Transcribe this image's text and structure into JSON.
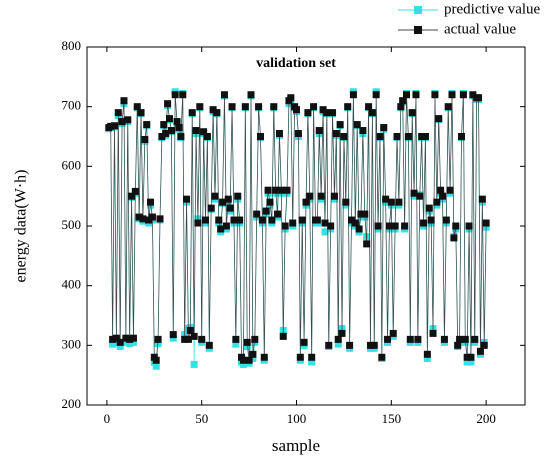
{
  "chart_data": {
    "type": "line",
    "title": "validation set",
    "xlabel": "sample",
    "ylabel": "energy data(W·h)",
    "legend": "upper right",
    "xlim": [
      -10.5,
      220.5
    ],
    "xticks": [
      0,
      50,
      100,
      150,
      200
    ],
    "ylim": [
      200,
      800
    ],
    "yticks": [
      200,
      300,
      400,
      500,
      600,
      700,
      800
    ],
    "x": [
      1,
      2,
      3,
      4,
      5,
      6,
      7,
      8,
      9,
      10,
      11,
      12,
      13,
      14,
      15,
      16,
      17,
      18,
      19,
      20,
      21,
      22,
      23,
      24,
      25,
      26,
      27,
      28,
      29,
      30,
      31,
      32,
      33,
      34,
      35,
      36,
      37,
      38,
      39,
      40,
      41,
      42,
      43,
      44,
      45,
      46,
      47,
      48,
      49,
      50,
      51,
      52,
      53,
      54,
      55,
      56,
      57,
      58,
      59,
      60,
      61,
      62,
      63,
      64,
      65,
      66,
      67,
      68,
      69,
      70,
      71,
      72,
      73,
      74,
      75,
      76,
      77,
      78,
      79,
      80,
      81,
      82,
      83,
      84,
      85,
      86,
      87,
      88,
      89,
      90,
      91,
      92,
      93,
      94,
      95,
      96,
      97,
      98,
      99,
      100,
      101,
      102,
      103,
      104,
      105,
      106,
      107,
      108,
      109,
      110,
      111,
      112,
      113,
      114,
      115,
      116,
      117,
      118,
      119,
      120,
      121,
      122,
      123,
      124,
      125,
      126,
      127,
      128,
      129,
      130,
      131,
      132,
      133,
      134,
      135,
      136,
      137,
      138,
      139,
      140,
      141,
      142,
      143,
      144,
      145,
      146,
      147,
      148,
      149,
      150,
      151,
      152,
      153,
      154,
      155,
      156,
      157,
      158,
      159,
      160,
      161,
      162,
      163,
      164,
      165,
      166,
      167,
      168,
      169,
      170,
      171,
      172,
      173,
      174,
      175,
      176,
      177,
      178,
      179,
      180,
      181,
      182,
      183,
      184,
      185,
      186,
      187,
      188,
      189,
      190,
      191,
      192,
      193,
      194,
      195,
      196,
      197,
      198,
      199,
      200
    ],
    "series": [
      {
        "name": "predictive value",
        "color": "#33e0e6",
        "values": [
          663,
          665,
          302,
          666,
          305,
          685,
          298,
          672,
          705,
          305,
          675,
          303,
          548,
          305,
          555,
          698,
          512,
          688,
          508,
          642,
          668,
          505,
          535,
          510,
          272,
          265,
          303,
          510,
          648,
          668,
          652,
          702,
          678,
          658,
          312,
          725,
          672,
          662,
          648,
          722,
          318,
          540,
          328,
          330,
          688,
          268,
          655,
          512,
          698,
          305,
          655,
          505,
          648,
          295,
          528,
          692,
          545,
          688,
          505,
          490,
          538,
          718,
          495,
          540,
          525,
          698,
          505,
          302,
          545,
          505,
          272,
          268,
          698,
          298,
          270,
          718,
          278,
          305,
          515,
          698,
          648,
          505,
          275,
          520,
          555,
          535,
          505,
          698,
          555,
          515,
          652,
          555,
          325,
          495,
          555,
          705,
          712,
          500,
          698,
          692,
          650,
          275,
          505,
          300,
          535,
          688,
          545,
          272,
          698,
          505,
          505,
          655,
          545,
          692,
          490,
          688,
          298,
          495,
          688,
          545,
          652,
          302,
          668,
          328,
          648,
          535,
          698,
          295,
          505,
          725,
          500,
          668,
          490,
          515,
          655,
          515,
          482,
          698,
          295,
          688,
          295,
          725,
          495,
          648,
          278,
          662,
          540,
          305,
          495,
          535,
          315,
          495,
          648,
          535,
          698,
          708,
          495,
          722,
          648,
          305,
          688,
          550,
          722,
          305,
          552,
          648,
          500,
          648,
          278,
          525,
          505,
          328,
          722,
          535,
          678,
          555,
          545,
          305,
          505,
          698,
          555,
          722,
          482,
          495,
          298,
          305,
          648,
          722,
          305,
          272,
          495,
          272,
          718,
          305,
          712,
          712,
          285,
          540,
          305,
          498
        ]
      },
      {
        "name": "actual value",
        "color": "#111111",
        "values": [
          665,
          667,
          310,
          668,
          312,
          690,
          305,
          675,
          710,
          312,
          678,
          310,
          550,
          312,
          558,
          700,
          515,
          690,
          512,
          645,
          670,
          510,
          540,
          515,
          280,
          275,
          310,
          512,
          650,
          670,
          655,
          705,
          680,
          660,
          318,
          720,
          675,
          665,
          650,
          720,
          310,
          545,
          310,
          325,
          690,
          315,
          660,
          505,
          700,
          310,
          658,
          510,
          650,
          300,
          530,
          695,
          550,
          690,
          510,
          495,
          540,
          720,
          500,
          545,
          530,
          700,
          510,
          310,
          550,
          510,
          280,
          275,
          700,
          305,
          275,
          720,
          285,
          310,
          520,
          700,
          650,
          510,
          280,
          525,
          560,
          540,
          510,
          700,
          560,
          520,
          655,
          560,
          315,
          500,
          560,
          710,
          715,
          505,
          700,
          695,
          655,
          280,
          510,
          305,
          540,
          690,
          550,
          280,
          700,
          510,
          510,
          660,
          550,
          695,
          505,
          690,
          300,
          500,
          690,
          550,
          655,
          310,
          670,
          320,
          650,
          540,
          700,
          300,
          510,
          720,
          505,
          670,
          495,
          520,
          660,
          520,
          470,
          700,
          300,
          690,
          300,
          720,
          500,
          650,
          280,
          665,
          545,
          310,
          500,
          540,
          320,
          500,
          650,
          540,
          700,
          710,
          500,
          720,
          650,
          310,
          690,
          555,
          720,
          310,
          550,
          650,
          505,
          650,
          285,
          530,
          510,
          320,
          720,
          540,
          680,
          560,
          550,
          310,
          510,
          700,
          560,
          720,
          480,
          500,
          300,
          310,
          650,
          720,
          310,
          280,
          500,
          280,
          720,
          310,
          715,
          715,
          290,
          545,
          300,
          505
        ]
      }
    ]
  }
}
